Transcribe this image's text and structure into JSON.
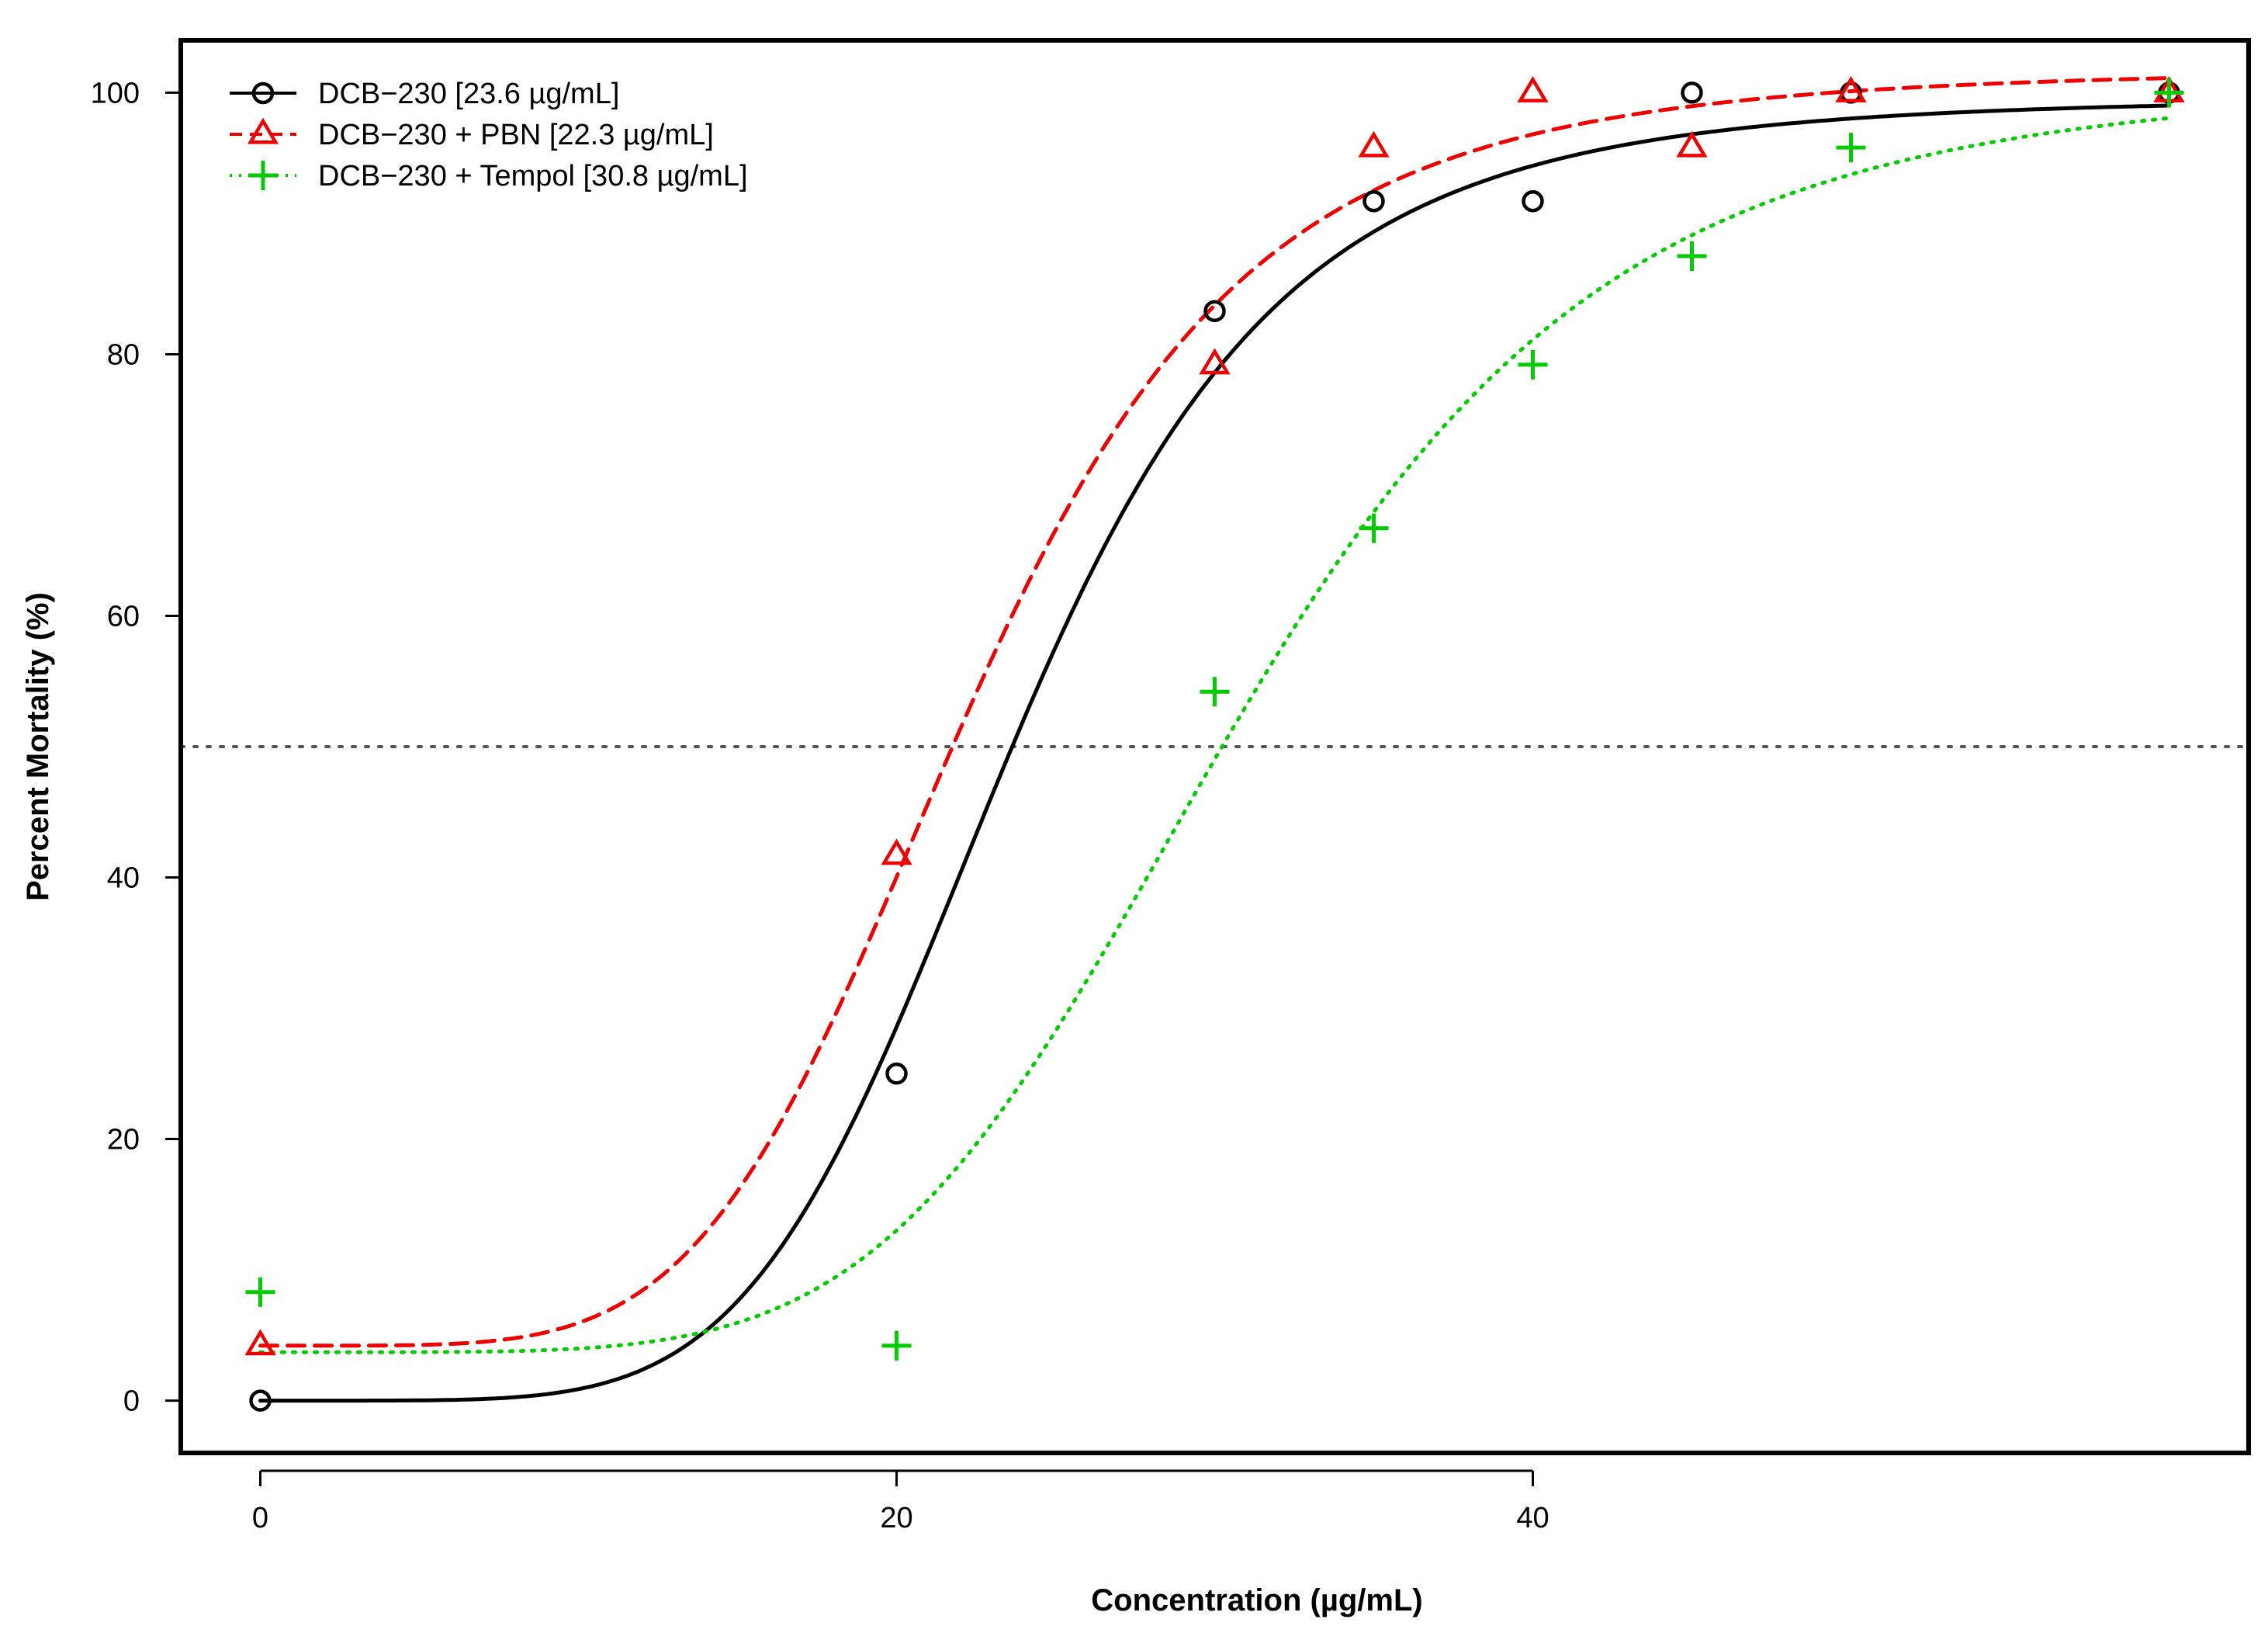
{
  "chart_data": {
    "type": "scatter",
    "title": "",
    "xlabel": "Concentration (µg/mL)",
    "ylabel": "Percent Mortality (%)",
    "xlim": [
      -2.5,
      62.5
    ],
    "ylim": [
      -4,
      104
    ],
    "x_ticks": [
      0,
      20,
      40
    ],
    "y_ticks": [
      0,
      20,
      40,
      60,
      80,
      100
    ],
    "reference_line": {
      "y": 50,
      "style": "dotted",
      "color": "#555555"
    },
    "legend_position": "top-left",
    "series": [
      {
        "name": "DCB−230 [23.6 µg/mL]",
        "color": "#000000",
        "marker": "circle",
        "line_style": "solid",
        "points": [
          [
            0,
            0
          ],
          [
            20,
            25
          ],
          [
            30,
            83.3
          ],
          [
            35,
            91.7
          ],
          [
            40,
            91.7
          ],
          [
            45,
            100
          ],
          [
            50,
            100
          ],
          [
            60,
            100
          ]
        ],
        "fit": {
          "bottom": 0,
          "top": 99.6,
          "ec50": 23.6,
          "hill": 5.5
        }
      },
      {
        "name": "DCB−230 + PBN [22.3 µg/mL]",
        "color": "#ee0000",
        "marker": "triangle",
        "line_style": "dashed",
        "points": [
          [
            0,
            4.2
          ],
          [
            20,
            41.7
          ],
          [
            30,
            79.2
          ],
          [
            35,
            95.8
          ],
          [
            40,
            100
          ],
          [
            45,
            95.8
          ],
          [
            50,
            100
          ],
          [
            60,
            100
          ]
        ],
        "fit": {
          "bottom": 4.2,
          "top": 101.8,
          "ec50": 22.3,
          "hill": 5.0
        }
      },
      {
        "name": "DCB−230 + Tempol [30.8 µg/mL]",
        "color": "#00cc00",
        "marker": "plus",
        "line_style": "dotted",
        "points": [
          [
            0,
            8.3
          ],
          [
            20,
            4.2
          ],
          [
            30,
            54.2
          ],
          [
            35,
            66.7
          ],
          [
            40,
            79.2
          ],
          [
            45,
            87.5
          ],
          [
            50,
            95.8
          ],
          [
            60,
            100
          ]
        ],
        "fit": {
          "bottom": 3.7,
          "top": 101,
          "ec50": 30.8,
          "hill": 5.2
        }
      }
    ]
  }
}
